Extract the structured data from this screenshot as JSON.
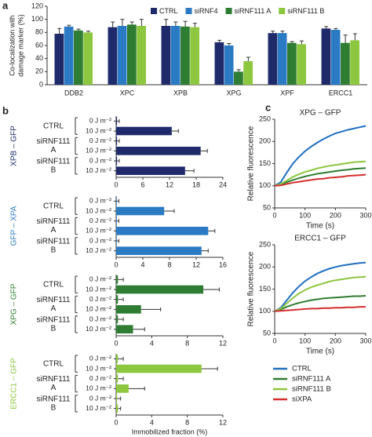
{
  "chart_data": [
    {
      "type": "bar",
      "panel": "a",
      "ylabel": [
        "Co-localization with",
        "damage marker (%)"
      ],
      "categories": [
        "DDB2",
        "XPC",
        "XPB",
        "XPG",
        "XPF",
        "ERCC1"
      ],
      "series": [
        {
          "name": "CTRL",
          "color": "#1f2a6b",
          "values": [
            78,
            88,
            90,
            65,
            79,
            86
          ],
          "errors": [
            8,
            8,
            10,
            3,
            3,
            3
          ]
        },
        {
          "name": "siRNF4",
          "color": "#2b7bc4",
          "values": [
            89,
            90,
            90,
            60,
            79,
            84
          ],
          "errors": [
            2,
            10,
            6,
            3,
            3,
            2
          ]
        },
        {
          "name": "siRNF111 A",
          "color": "#2e7d32",
          "values": [
            83,
            92,
            89,
            20,
            64,
            64
          ],
          "errors": [
            2,
            4,
            8,
            3,
            2,
            12
          ]
        },
        {
          "name": "siRNF111 B",
          "color": "#8dc63f",
          "values": [
            80,
            90,
            88,
            36,
            62,
            68
          ],
          "errors": [
            2,
            10,
            6,
            6,
            5,
            10
          ]
        }
      ],
      "ylim": [
        0,
        120
      ],
      "yticks": [
        0,
        20,
        40,
        60,
        80,
        100,
        120
      ]
    },
    {
      "type": "barh",
      "panel": "b",
      "ylabel": "XPB – GFP",
      "color": "#1f2a6b",
      "rows": [
        "0 J m⁻²",
        "10 J m⁻²",
        "0 J m⁻²",
        "10 J m⁻²",
        "0 J m⁻²",
        "10 J m⁻²"
      ],
      "groups": [
        [
          "CTRL"
        ],
        [
          "siRNF111",
          "A"
        ],
        [
          "siRNF111",
          "B"
        ]
      ],
      "values": [
        0.2,
        12.5,
        0.2,
        19,
        0.2,
        15.5
      ],
      "errors": [
        0.5,
        1.5,
        0.5,
        1.5,
        0.5,
        2
      ],
      "xlim": [
        0,
        24
      ],
      "xticks": [
        0,
        6,
        12,
        18,
        24
      ]
    },
    {
      "type": "barh",
      "ylabel": "GFP – XPA",
      "color": "#2b7bc4",
      "rows": [
        "0 J m⁻²",
        "10 J m⁻²",
        "0 J m⁻²",
        "10 J m⁻²",
        "0 J m⁻²",
        "10 J m⁻²"
      ],
      "groups": [
        [
          "CTRL"
        ],
        [
          "siRNF111",
          "A"
        ],
        [
          "siRNF111",
          "B"
        ]
      ],
      "values": [
        0.1,
        7.2,
        0.1,
        13.8,
        0.1,
        12.8
      ],
      "errors": [
        0.3,
        1.5,
        0.3,
        1,
        0.3,
        1
      ],
      "xlim": [
        0,
        16
      ],
      "xticks": [
        0,
        4,
        8,
        12,
        16
      ]
    },
    {
      "type": "barh",
      "ylabel": "XPG – GFP",
      "color": "#2e7d32",
      "rows": [
        "0 J m⁻²",
        "10 J m⁻²",
        "0 J m⁻²",
        "10 J m⁻²",
        "0 J m⁻²",
        "10 J m⁻²"
      ],
      "groups": [
        [
          "CTRL"
        ],
        [
          "siRNF111",
          "A"
        ],
        [
          "siRNF111",
          "B"
        ]
      ],
      "values": [
        0.2,
        9.8,
        0.2,
        2.8,
        0.2,
        1.9
      ],
      "errors": [
        0.6,
        1.8,
        0.6,
        2.2,
        0.6,
        1.3
      ],
      "xlim": [
        0,
        12
      ],
      "xticks": [
        0,
        4,
        8,
        12
      ]
    },
    {
      "type": "barh",
      "ylabel": "ERCC1 – GFP",
      "color": "#8dc63f",
      "xlabel": "Immobilized fraction (%)",
      "rows": [
        "0 J m⁻²",
        "10 J m⁻²",
        "0 J m⁻²",
        "10 J m⁻²",
        "0 J m⁻²",
        "10 J m⁻²"
      ],
      "groups": [
        [
          "CTRL"
        ],
        [
          "siRNF111",
          "A"
        ],
        [
          "siRNF111",
          "B"
        ]
      ],
      "values": [
        0.2,
        9.6,
        0.2,
        1.4,
        0.1,
        0.2
      ],
      "errors": [
        0.6,
        1.8,
        0.6,
        1.8,
        0.4,
        0.3
      ],
      "xlim": [
        0,
        12
      ],
      "xticks": [
        0,
        4,
        8,
        12
      ]
    },
    {
      "type": "line",
      "panel": "c",
      "title": "XPG – GFP",
      "ylabel": "Relative fluorescence",
      "xlabel": "Time (s)",
      "x": [
        0,
        20,
        40,
        60,
        80,
        100,
        120,
        140,
        160,
        180,
        200,
        220,
        240,
        260,
        280,
        300
      ],
      "series": [
        {
          "color": "#1f6fbf",
          "values": [
            100,
            108,
            130,
            150,
            165,
            178,
            188,
            197,
            205,
            212,
            218,
            222,
            226,
            229,
            232,
            235
          ]
        },
        {
          "color": "#2e7d32",
          "values": [
            100,
            103,
            108,
            113,
            117,
            121,
            124,
            127,
            129,
            131,
            133,
            135,
            136,
            138,
            139,
            140
          ]
        },
        {
          "color": "#8dc63f",
          "values": [
            100,
            104,
            112,
            120,
            126,
            131,
            135,
            139,
            142,
            145,
            147,
            149,
            151,
            153,
            154,
            155
          ]
        },
        {
          "color": "#d32f2f",
          "values": [
            100,
            101,
            104,
            107,
            109,
            111,
            113,
            115,
            116,
            118,
            119,
            120,
            122,
            123,
            124,
            125
          ]
        }
      ],
      "xlim": [
        0,
        300
      ],
      "xticks": [
        0,
        100,
        200,
        300
      ],
      "ylim": [
        50,
        250
      ],
      "yticks": [
        50,
        100,
        150,
        200,
        250
      ]
    },
    {
      "type": "line",
      "title": "ERCC1 – GFP",
      "ylabel": "Relative fluorescence",
      "xlabel": "Time (s)",
      "x": [
        0,
        20,
        40,
        60,
        80,
        100,
        120,
        140,
        160,
        180,
        200,
        220,
        240,
        260,
        280,
        300
      ],
      "series": [
        {
          "name": "CTRL",
          "color": "#1f6fbf",
          "values": [
            100,
            108,
            125,
            142,
            156,
            168,
            177,
            185,
            191,
            196,
            200,
            203,
            205,
            207,
            209,
            210
          ]
        },
        {
          "name": "siRNF111 A",
          "color": "#2e7d32",
          "values": [
            100,
            104,
            110,
            115,
            119,
            122,
            125,
            127,
            129,
            130,
            131,
            132,
            133,
            134,
            134,
            135
          ]
        },
        {
          "name": "siRNF111 B",
          "color": "#8dc63f",
          "values": [
            100,
            106,
            118,
            130,
            140,
            148,
            154,
            159,
            163,
            167,
            170,
            172,
            174,
            176,
            177,
            178
          ]
        },
        {
          "name": "siXPA",
          "color": "#d32f2f",
          "values": [
            100,
            101,
            102,
            103,
            104,
            105,
            106,
            106,
            107,
            107,
            108,
            108,
            109,
            109,
            110,
            110
          ]
        }
      ],
      "xlim": [
        0,
        300
      ],
      "xticks": [
        0,
        100,
        200,
        300
      ],
      "ylim": [
        50,
        250
      ],
      "yticks": [
        50,
        100,
        150,
        200,
        250
      ]
    }
  ]
}
